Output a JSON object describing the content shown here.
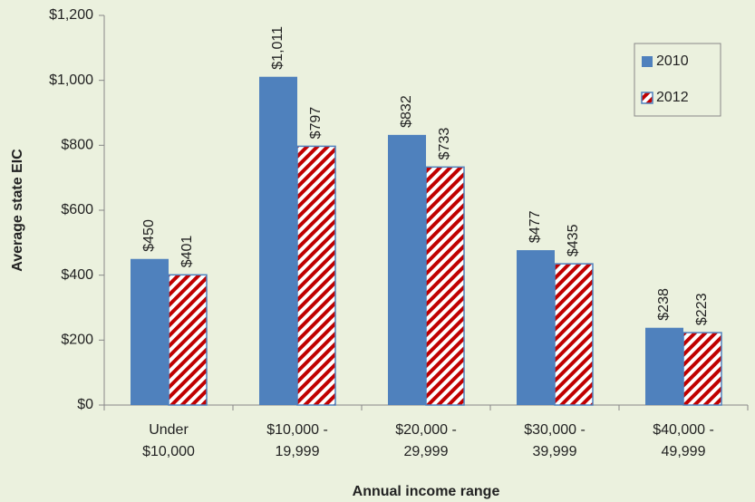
{
  "chart_data": {
    "type": "bar",
    "x_label": "Annual income range",
    "y_label": "Average state EIC",
    "categories": [
      "Under\n$10,000",
      "$10,000 -\n19,999",
      "$20,000 -\n29,999",
      "$30,000 -\n39,999",
      "$40,000 -\n49,999"
    ],
    "series": [
      {
        "name": "2010",
        "color": "#4f81bd",
        "values": [
          450,
          1011,
          832,
          477,
          238
        ],
        "value_labels": [
          "$450",
          "$1,011",
          "$832",
          "$477",
          "$238"
        ]
      },
      {
        "name": "2012",
        "color": "#c00000",
        "pattern": "diagonal-stripes",
        "values": [
          401,
          797,
          733,
          435,
          223
        ],
        "value_labels": [
          "$401",
          "$797",
          "$733",
          "$435",
          "$223"
        ]
      }
    ],
    "ylim": [
      0,
      1200
    ],
    "yticks": [
      {
        "value": 0,
        "label": "$0"
      },
      {
        "value": 200,
        "label": "$200"
      },
      {
        "value": 400,
        "label": "$400"
      },
      {
        "value": 600,
        "label": "$600"
      },
      {
        "value": 800,
        "label": "$800"
      },
      {
        "value": 1000,
        "label": "$1,000"
      },
      {
        "value": 1200,
        "label": "$1,200"
      }
    ],
    "legend": "top-right"
  }
}
